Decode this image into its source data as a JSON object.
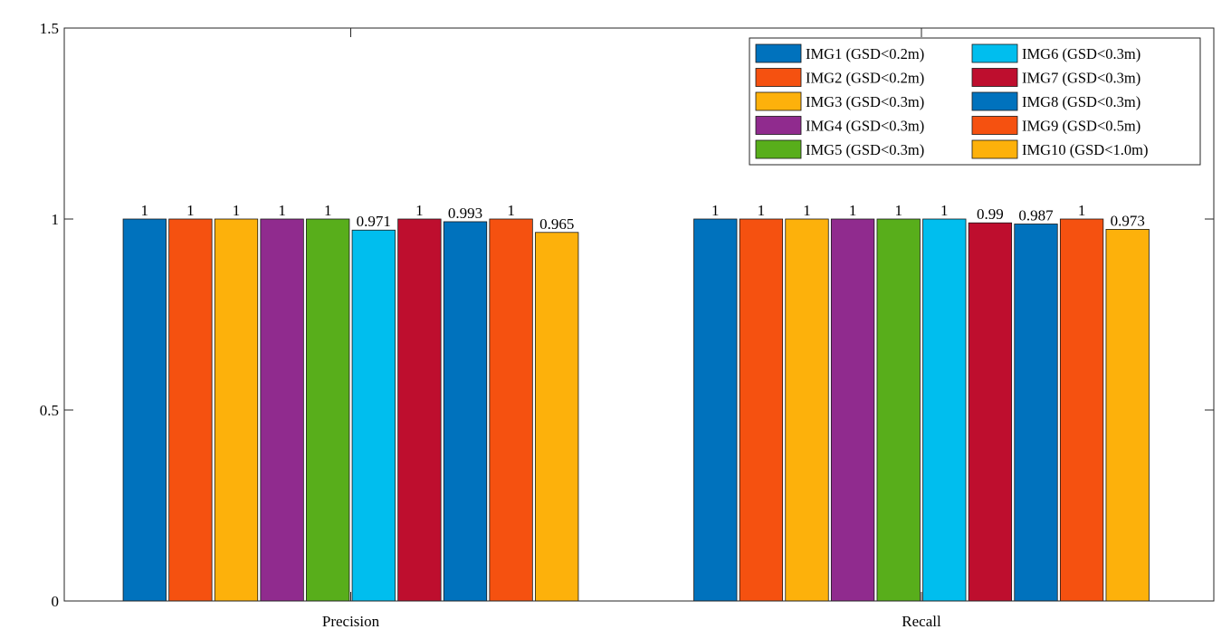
{
  "chart_data": {
    "type": "bar",
    "title": "",
    "xlabel": "",
    "ylabel": "",
    "categories": [
      "Precision",
      "Recall"
    ],
    "ylim": [
      0,
      1.5
    ],
    "yticks": [
      0,
      0.5,
      1,
      1.5
    ],
    "ytick_labels": [
      "0",
      "0.5",
      "1",
      "1.5"
    ],
    "grid": false,
    "legend_position": "top-right",
    "legend_columns": 2,
    "series": [
      {
        "name": "IMG1 (GSD<0.2m)",
        "color": "#0072BD",
        "values": [
          1,
          1
        ],
        "labels": [
          "1",
          "1"
        ]
      },
      {
        "name": "IMG2 (GSD<0.2m)",
        "color": "#F55110",
        "values": [
          1,
          1
        ],
        "labels": [
          "1",
          "1"
        ]
      },
      {
        "name": "IMG3 (GSD<0.3m)",
        "color": "#FDB10B",
        "values": [
          1,
          1
        ],
        "labels": [
          "1",
          "1"
        ]
      },
      {
        "name": "IMG4 (GSD<0.3m)",
        "color": "#902B8E",
        "values": [
          1,
          1
        ],
        "labels": [
          "1",
          "1"
        ]
      },
      {
        "name": "IMG5 (GSD<0.3m)",
        "color": "#58AE1B",
        "values": [
          1,
          1
        ],
        "labels": [
          "1",
          "1"
        ]
      },
      {
        "name": "IMG6 (GSD<0.3m)",
        "color": "#00BEEE",
        "values": [
          0.971,
          1
        ],
        "labels": [
          "0.971",
          "1"
        ]
      },
      {
        "name": "IMG7 (GSD<0.3m)",
        "color": "#BE0E2E",
        "values": [
          1,
          0.99
        ],
        "labels": [
          "1",
          "0.99"
        ]
      },
      {
        "name": "IMG8 (GSD<0.3m)",
        "color": "#0072BD",
        "values": [
          0.993,
          0.987
        ],
        "labels": [
          "0.993",
          "0.987"
        ]
      },
      {
        "name": "IMG9 (GSD<0.5m)",
        "color": "#F55110",
        "values": [
          1,
          1
        ],
        "labels": [
          "1",
          "1"
        ]
      },
      {
        "name": "IMG10 (GSD<1.0m)",
        "color": "#FDB10B",
        "values": [
          0.965,
          0.973
        ],
        "labels": [
          "0.965",
          "0.973"
        ]
      }
    ]
  }
}
